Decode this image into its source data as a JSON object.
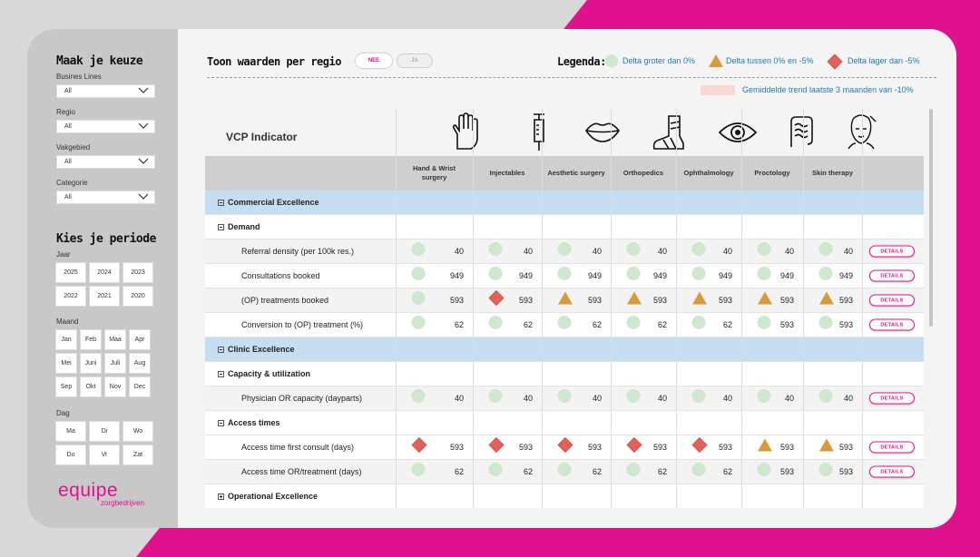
{
  "colors": {
    "accent": "#e0118c",
    "blue_text": "#1e7bb8",
    "section_bg": "#c6def2",
    "green": "#cfe6cf",
    "orange": "#d99a3a",
    "red": "#e2625a"
  },
  "sidebar": {
    "title": "Maak je keuze",
    "filters": [
      {
        "label": "Busines Lines",
        "value": "All"
      },
      {
        "label": "Regio",
        "value": "All"
      },
      {
        "label": "Vakgebied",
        "value": "All"
      },
      {
        "label": "Categorie",
        "value": "All"
      }
    ],
    "period_title": "Kies je periode",
    "jaar_label": "Jaar",
    "years": [
      "2025",
      "2024",
      "2023",
      "2022",
      "2021",
      "2020"
    ],
    "maand_label": "Maand",
    "months": [
      "Jan",
      "Feb",
      "Maa",
      "Apr",
      "Mei",
      "Juni",
      "Juli",
      "Aug",
      "Sep",
      "Okt",
      "Nov",
      "Dec"
    ],
    "dag_label": "Dag",
    "days": [
      "Ma",
      "Di",
      "Wo",
      "Do",
      "Vr",
      "Zat"
    ],
    "logo_main": "equipe",
    "logo_sub": "zorgbedrijven"
  },
  "header": {
    "toon_label": "Toon waarden per regio",
    "toggle_nee": "NEE",
    "toggle_ja": "JA",
    "legenda_label": "Legenda:",
    "legend": [
      {
        "icon": "green-circle-icon",
        "text": "Delta groter dan 0%"
      },
      {
        "icon": "orange-triangle-icon",
        "text": "Delta tussen 0% en -5%"
      },
      {
        "icon": "red-diamond-icon",
        "text": "Delta lager dan -5%"
      }
    ],
    "trend_text": "Gemiddelde trend laatste 3 maanden van -10%"
  },
  "table": {
    "indicator_title": "VCP Indicator",
    "columns": [
      {
        "name": "Hand & Wrist surgery",
        "icon": "hand-icon"
      },
      {
        "name": "Injectables",
        "icon": "syringe-icon"
      },
      {
        "name": "Aesthetic surgery",
        "icon": "lips-icon"
      },
      {
        "name": "Orthopedics",
        "icon": "foot-cast-icon"
      },
      {
        "name": "Ophthalmology",
        "icon": "eye-icon"
      },
      {
        "name": "Proctology",
        "icon": "intestine-icon"
      },
      {
        "name": "Skin therapy",
        "icon": "face-treatment-icon"
      }
    ],
    "details_label": "DETAILS",
    "rows": [
      {
        "kind": "section",
        "label": "Commercial Excellence",
        "expanded": true
      },
      {
        "kind": "group",
        "label": "Demand",
        "expanded": true
      },
      {
        "kind": "indicator",
        "label": "Referral density (per 100k res.)",
        "cells": [
          [
            "g",
            "40"
          ],
          [
            "g",
            "40"
          ],
          [
            "g",
            "40"
          ],
          [
            "g",
            "40"
          ],
          [
            "g",
            "40"
          ],
          [
            "g",
            "40"
          ],
          [
            "g",
            "40"
          ]
        ]
      },
      {
        "kind": "indicator",
        "label": "Consultations booked",
        "cells": [
          [
            "g",
            "949"
          ],
          [
            "g",
            "949"
          ],
          [
            "g",
            "949"
          ],
          [
            "g",
            "949"
          ],
          [
            "g",
            "949"
          ],
          [
            "g",
            "949"
          ],
          [
            "g",
            "949"
          ]
        ]
      },
      {
        "kind": "indicator",
        "label": "(OP) treatments booked",
        "cells": [
          [
            "g",
            "593"
          ],
          [
            "r",
            "593"
          ],
          [
            "o",
            "593"
          ],
          [
            "o",
            "593"
          ],
          [
            "o",
            "593"
          ],
          [
            "o",
            "593"
          ],
          [
            "o",
            "593"
          ]
        ]
      },
      {
        "kind": "indicator",
        "label": "Conversion to (OP) treatment (%)",
        "cells": [
          [
            "g",
            "62"
          ],
          [
            "g",
            "62"
          ],
          [
            "g",
            "62"
          ],
          [
            "g",
            "62"
          ],
          [
            "g",
            "62"
          ],
          [
            "g",
            "593"
          ],
          [
            "g",
            "593"
          ]
        ]
      },
      {
        "kind": "section",
        "label": "Clinic Excellence",
        "expanded": true
      },
      {
        "kind": "group",
        "label": "Capacity & utilization",
        "expanded": true
      },
      {
        "kind": "indicator",
        "label": "Physician OR capacity (dayparts)",
        "cells": [
          [
            "g",
            "40"
          ],
          [
            "g",
            "40"
          ],
          [
            "g",
            "40"
          ],
          [
            "g",
            "40"
          ],
          [
            "g",
            "40"
          ],
          [
            "g",
            "40"
          ],
          [
            "g",
            "40"
          ]
        ]
      },
      {
        "kind": "group",
        "label": "Access times",
        "expanded": true
      },
      {
        "kind": "indicator",
        "label": "Access time first consult (days)",
        "cells": [
          [
            "r",
            "593"
          ],
          [
            "r",
            "593"
          ],
          [
            "r",
            "593"
          ],
          [
            "r",
            "593"
          ],
          [
            "r",
            "593"
          ],
          [
            "o",
            "593"
          ],
          [
            "o",
            "593"
          ]
        ]
      },
      {
        "kind": "indicator",
        "label": "Access time OR/treatment (days)",
        "cells": [
          [
            "g",
            "62"
          ],
          [
            "g",
            "62"
          ],
          [
            "g",
            "62"
          ],
          [
            "g",
            "62"
          ],
          [
            "g",
            "62"
          ],
          [
            "g",
            "593"
          ],
          [
            "g",
            "593"
          ]
        ]
      },
      {
        "kind": "group",
        "label": "Operational Excellence",
        "expanded": false
      }
    ]
  }
}
